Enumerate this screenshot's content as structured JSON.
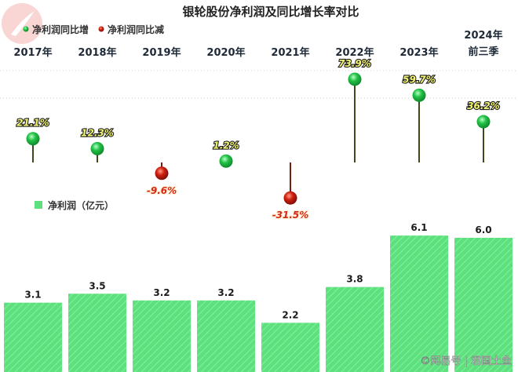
{
  "chart_data": {
    "type": "bar",
    "title": "银轮股份净利润及同比增长率对比",
    "categories": [
      "2017年",
      "2018年",
      "2019年",
      "2020年",
      "2021年",
      "2022年",
      "2023年",
      "2024年前三季"
    ],
    "category_labels": [
      [
        "2017年"
      ],
      [
        "2018年"
      ],
      [
        "2019年"
      ],
      [
        "2020年"
      ],
      [
        "2021年"
      ],
      [
        "2022年"
      ],
      [
        "2023年"
      ],
      [
        "2024年",
        "前三季"
      ]
    ],
    "series": [
      {
        "name": "净利润（亿元）",
        "unit": "亿元",
        "values": [
          3.1,
          3.5,
          3.2,
          3.2,
          2.2,
          3.8,
          6.1,
          6.0
        ],
        "labels": [
          "3.1",
          "3.5",
          "3.2",
          "3.2",
          "2.2",
          "3.8",
          "6.1",
          "6.0"
        ]
      },
      {
        "name": "同比增长率",
        "unit": "%",
        "values": [
          21.1,
          12.3,
          -9.6,
          1.2,
          -31.5,
          73.9,
          59.7,
          36.2
        ],
        "labels": [
          "21.1%",
          "12.3%",
          "-9.6%",
          "1.2%",
          "-31.5%",
          "73.9%",
          "59.7%",
          "36.2%"
        ]
      }
    ],
    "legend": {
      "growth_up": "净利润同比增",
      "growth_down": "净利润同比减",
      "profit": "净利润（亿元）"
    },
    "colors": {
      "bar": "#5fe07f",
      "bar_stripe": "#7ef29a",
      "dot_up": "#22c146",
      "dot_down": "#cf1f10",
      "stem": "#3d4a1c",
      "stem_down": "#7a1a12"
    }
  },
  "watermark": "©网易号 | 君国土鱼"
}
